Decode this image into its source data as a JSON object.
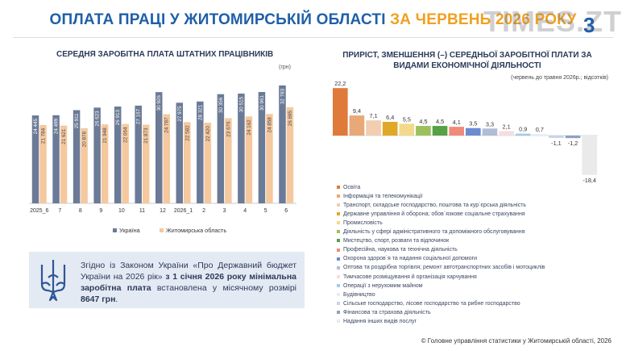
{
  "header": {
    "title_main": "ОПЛАТА ПРАЦІ У ЖИТОМИРСЬКІЙ ОБЛАСТІ ",
    "title_highlight": "ЗА ЧЕРВЕНЬ 2026 РОКУ",
    "page_number": "3",
    "watermark": "TIMES.ZT"
  },
  "left_panel": {
    "unit": "(грн)"
  },
  "right_panel": {
    "subtitle": "(червень до травня 2026р.; відсотків)"
  },
  "note": {
    "part1": "Згідно із Законом України «Про Державний бюджет України на 2026 рік» ",
    "part2": "з 1 січня 2026 року мінімальна заробітна плата",
    "part3": " встановлена у місячному розмірі ",
    "part4": "8647 грн",
    "part5": "."
  },
  "footer": "© Головне управління статистики у Житомирській області, 2026",
  "colors": {
    "ukraine": "#6b7a96",
    "oblast": "#f5c89e",
    "title": "#1f5fa8",
    "highlight": "#f0a020"
  },
  "chart_data": [
    {
      "type": "bar",
      "title": "СЕРЕДНЯ ЗАРОБІТНА ПЛАТА ШТАТНИХ ПРАЦІВНИКІВ",
      "categories": [
        "2025_6",
        "7",
        "8",
        "9",
        "10",
        "11",
        "12",
        "2026_1",
        "2",
        "3",
        "4",
        "5",
        "6"
      ],
      "series": [
        {
          "name": "Україна",
          "values": [
            24445,
            24499,
            25911,
            26623,
            26913,
            27167,
            30926,
            27975,
            28321,
            30356,
            30515,
            30961,
            32783
          ],
          "labels": [
            "24 445",
            "24 499",
            "25 911",
            "26 623",
            "26 913",
            "27 167",
            "30 926",
            "27 975",
            "28 321",
            "30 356",
            "30 515",
            "30 961",
            "32 783"
          ]
        },
        {
          "name": "Житомирська область",
          "values": [
            21784,
            21621,
            20878,
            21948,
            22064,
            21873,
            24787,
            22582,
            22420,
            23676,
            24162,
            24858,
            26695
          ],
          "labels": [
            "21 784",
            "21 621",
            "20 878",
            "21 948",
            "22 064",
            "21 873",
            "24 787",
            "22 582",
            "22 420",
            "23 676",
            "24 162",
            "24 858",
            "26 695"
          ]
        }
      ],
      "ylim": [
        0,
        35000
      ],
      "legend": "bottom"
    },
    {
      "type": "bar",
      "title": "ПРИРІСТ, ЗМЕНШЕННЯ (–) СЕРЕДНЬОЇ ЗАРОБІТНОЇ ПЛАТИ ЗА ВИДАМИ ЕКОНОМІЧНОЇ ДІЯЛЬНОСТІ",
      "values": [
        22.2,
        9.4,
        7.1,
        6.4,
        5.5,
        4.5,
        4.5,
        4.1,
        3.5,
        3.3,
        2.1,
        0.9,
        0.7,
        -1.1,
        -1.2,
        -18.4
      ],
      "value_labels": [
        "22,2",
        "9,4",
        "7,1",
        "6,4",
        "5,5",
        "4,5",
        "4,5",
        "4,1",
        "3,5",
        "3,3",
        "2,1",
        "0,9",
        "0,7",
        "-1,1",
        "-1,2",
        "-18,4"
      ],
      "categories": [
        "Освіта",
        "Інформація та телекомунікації",
        "Транспорт, складське господарство, поштова та кур`єрська діяльність",
        "Державне управління й оборона; обов`язкове соціальне страхування",
        "Промисловість",
        "Діяльність у сфері адміністративного та допоміжного обслуговування",
        "Мистецтво, спорт, розваги та відпочинок",
        "Професійна, наукова та технічна діяльність",
        "Охорона здоров`я та надання соціальної допомоги",
        "Оптова та роздрібна торгівля; ремонт автотранспортних засобів і мотоциклів",
        "Тимчасове розміщування й організація харчування",
        "Операції з нерухомим майном",
        "Будівництво",
        "Сільське господарство, лісове господарство та рибне господарство",
        "Фінансова та страхова діяльність",
        "Надання інших видів послуг"
      ],
      "colors": [
        "#e07a3a",
        "#e8a878",
        "#f3cdb0",
        "#e0a826",
        "#f3d98a",
        "#9cc05c",
        "#58a046",
        "#f08a7a",
        "#6b8cd0",
        "#b1bdd6",
        "#f6dede",
        "#a6c8e8",
        "#e9ecf2",
        "#c6d4e6",
        "#8ea2c0",
        "#eaeaea"
      ],
      "legend": "bottom"
    }
  ]
}
